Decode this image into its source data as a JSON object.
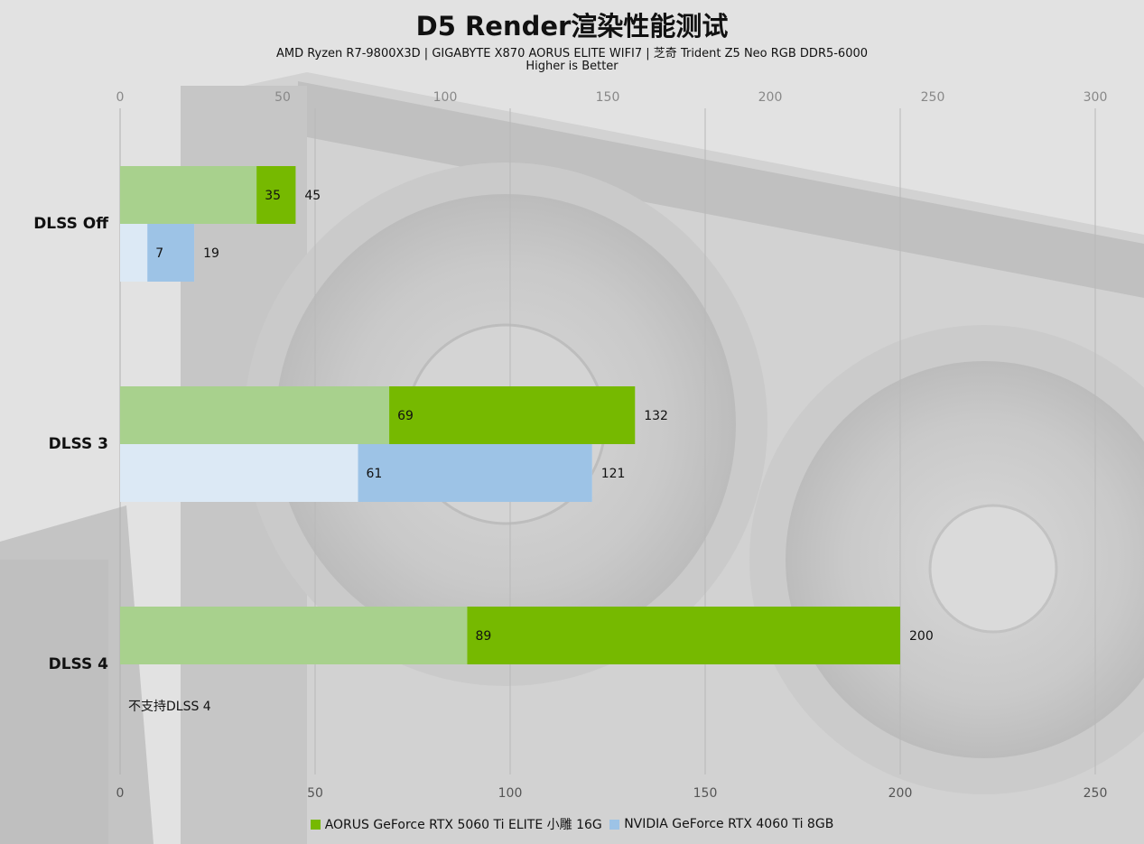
{
  "chart_data": {
    "type": "bar",
    "orientation": "horizontal",
    "title": "D5 Render渲染性能测试",
    "subtitle": "AMD Ryzen R7-9800X3D | GIGABYTE X870 AORUS ELITE WIFI7 | 芝奇 Trident Z5 Neo RGB DDR5-6000",
    "note": "Higher is Better",
    "categories": [
      "DLSS Off",
      "DLSS 3",
      "DLSS 4"
    ],
    "series": [
      {
        "name": "AORUS GeForce RTX 5060 Ti ELITE 小雕 16G",
        "color": "#76b900",
        "light_color": "#a8d18d",
        "inner_values": [
          35,
          69,
          89
        ],
        "values": [
          45,
          132,
          200
        ]
      },
      {
        "name": "NVIDIA GeForce RTX 4060 Ti 8GB",
        "color": "#9dc3e6",
        "light_color": "#dce9f5",
        "inner_values": [
          7,
          61,
          null
        ],
        "values": [
          19,
          121,
          null
        ]
      }
    ],
    "annotations": [
      "不支持DLSS 4"
    ],
    "axes": [
      {
        "position": "top",
        "ticks": [
          0,
          50,
          100,
          150,
          200,
          250,
          300
        ],
        "range": [
          0,
          300
        ]
      },
      {
        "position": "bottom",
        "ticks": [
          0,
          50,
          100,
          150,
          200,
          250
        ],
        "range": [
          0,
          250
        ]
      }
    ],
    "grid": true,
    "legend_position": "bottom"
  }
}
